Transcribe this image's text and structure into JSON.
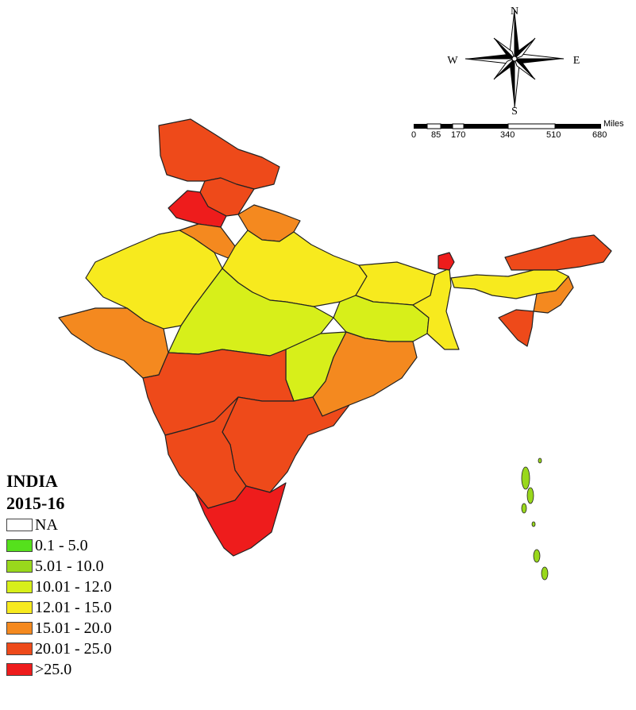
{
  "legend": {
    "title_line1": "INDIA",
    "title_line2": "2015-16",
    "classes": [
      {
        "label": "NA",
        "color": "#ffffff"
      },
      {
        "label": "0.1 - 5.0",
        "color": "#55e01c"
      },
      {
        "label": "5.01 - 10.0",
        "color": "#99d81c"
      },
      {
        "label": "10.01 - 12.0",
        "color": "#d7ef1a"
      },
      {
        "label": "12.01 - 15.0",
        "color": "#f7ea1e"
      },
      {
        "label": "15.01 - 20.0",
        "color": "#f4891f"
      },
      {
        "label": "20.01 - 25.0",
        "color": "#ee4a1a"
      },
      {
        "label": ">25.0",
        "color": "#ee1c1c"
      }
    ]
  },
  "compass": {
    "n": "N",
    "s": "S",
    "e": "E",
    "w": "W"
  },
  "scale": {
    "unit": "Miles",
    "ticks": [
      "0",
      "85",
      "170",
      "340",
      "510",
      "680"
    ]
  },
  "regions": [
    {
      "name": "Jammu & Kashmir",
      "class": 6
    },
    {
      "name": "Himachal Pradesh",
      "class": 6
    },
    {
      "name": "Punjab",
      "class": 7
    },
    {
      "name": "Uttarakhand",
      "class": 5
    },
    {
      "name": "Haryana",
      "class": 5
    },
    {
      "name": "Rajasthan",
      "class": 4
    },
    {
      "name": "Uttar Pradesh",
      "class": 4
    },
    {
      "name": "Gujarat",
      "class": 5
    },
    {
      "name": "Madhya Pradesh",
      "class": 3
    },
    {
      "name": "Bihar",
      "class": 4
    },
    {
      "name": "Jharkhand",
      "class": 3
    },
    {
      "name": "West Bengal",
      "class": 4
    },
    {
      "name": "Chhattisgarh",
      "class": 3
    },
    {
      "name": "Odisha",
      "class": 5
    },
    {
      "name": "Maharashtra",
      "class": 6
    },
    {
      "name": "Telangana & Andhra Pradesh",
      "class": 6
    },
    {
      "name": "Karnataka",
      "class": 6
    },
    {
      "name": "Kerala & Tamil Nadu",
      "class": 7
    },
    {
      "name": "Sikkim",
      "class": 7
    },
    {
      "name": "Arunachal Pradesh",
      "class": 6
    },
    {
      "name": "Assam & Meghalaya",
      "class": 4
    },
    {
      "name": "Nagaland & Manipur",
      "class": 5
    },
    {
      "name": "Mizoram & Tripura",
      "class": 6
    },
    {
      "name": "Andaman & Nicobar",
      "class": 2
    }
  ]
}
